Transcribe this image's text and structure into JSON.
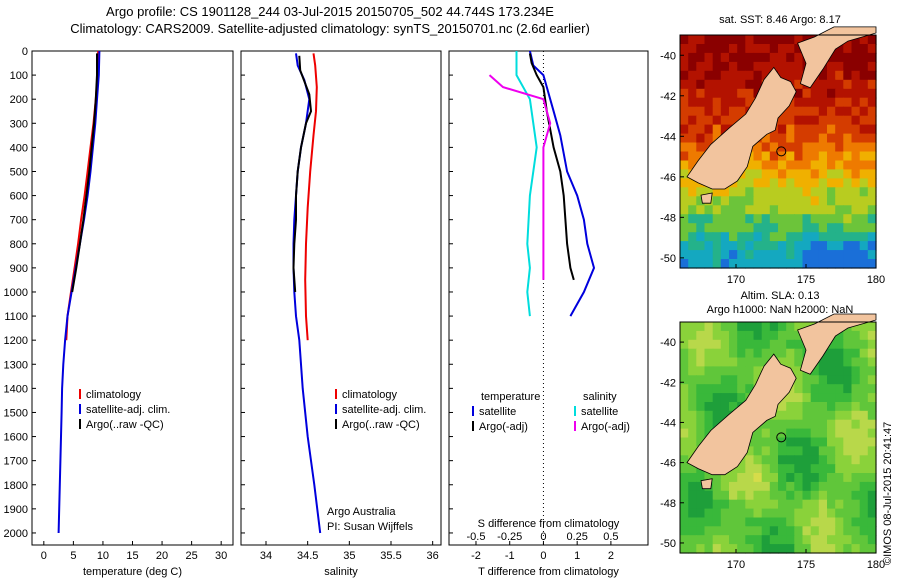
{
  "header": {
    "title_line1": "Argo profile: CS 1901128_244 03-Jul-2015 20150705_502 44.744S 173.234E",
    "title_line2": "Climatology: CARS2009. Satellite-adjusted climatology: synTS_20150701.nc (2.6d earlier)"
  },
  "colors": {
    "climatology": "#ee0000",
    "satellite": "#0000dd",
    "argo": "#000000",
    "satellite_s": "#00dddd",
    "argo_s": "#ee00ee",
    "land": "#f2c49e"
  },
  "chart_data": [
    {
      "type": "line",
      "xlabel": "temperature (deg C)",
      "xlim": [
        -2,
        32
      ],
      "xticks": [
        0,
        5,
        10,
        15,
        20,
        25,
        30
      ],
      "ylim": [
        2050,
        0
      ],
      "yticks": [
        0,
        100,
        200,
        300,
        400,
        500,
        600,
        700,
        800,
        900,
        1000,
        1100,
        1200,
        1300,
        1400,
        1500,
        1600,
        1700,
        1800,
        1900,
        2000
      ],
      "legend": [
        "climatology",
        "satellite-adj. clim.",
        "Argo(..raw -QC)"
      ],
      "series": [
        {
          "name": "climatology",
          "color": "#ee0000",
          "points": [
            [
              9.2,
              0
            ],
            [
              9.1,
              100
            ],
            [
              8.8,
              200
            ],
            [
              8.4,
              300
            ],
            [
              7.9,
              400
            ],
            [
              7.4,
              500
            ],
            [
              6.9,
              600
            ],
            [
              6.3,
              700
            ],
            [
              5.8,
              800
            ],
            [
              5.2,
              900
            ],
            [
              4.6,
              1000
            ],
            [
              4.0,
              1100
            ],
            [
              3.8,
              1200
            ]
          ]
        },
        {
          "name": "satellite-adj. clim.",
          "color": "#0000dd",
          "points": [
            [
              9.4,
              0
            ],
            [
              9.3,
              100
            ],
            [
              9.0,
              200
            ],
            [
              8.7,
              300
            ],
            [
              8.3,
              400
            ],
            [
              7.9,
              500
            ],
            [
              7.4,
              600
            ],
            [
              6.8,
              700
            ],
            [
              6.1,
              800
            ],
            [
              5.4,
              900
            ],
            [
              4.7,
              1000
            ],
            [
              4.0,
              1100
            ],
            [
              3.6,
              1200
            ],
            [
              3.3,
              1300
            ],
            [
              3.1,
              1400
            ],
            [
              3.0,
              1500
            ],
            [
              2.9,
              1600
            ],
            [
              2.8,
              1700
            ],
            [
              2.7,
              1800
            ],
            [
              2.6,
              1900
            ],
            [
              2.5,
              2000
            ]
          ]
        },
        {
          "name": "Argo(..raw -QC)",
          "color": "#000000",
          "points": [
            [
              9.0,
              10
            ],
            [
              9.0,
              100
            ],
            [
              8.8,
              200
            ],
            [
              8.5,
              300
            ],
            [
              8.1,
              400
            ],
            [
              7.7,
              500
            ],
            [
              7.2,
              600
            ],
            [
              6.7,
              700
            ],
            [
              6.1,
              800
            ],
            [
              5.5,
              900
            ],
            [
              4.8,
              1000
            ]
          ]
        }
      ]
    },
    {
      "type": "line",
      "xlabel": "salinity",
      "xlim": [
        33.7,
        36.1
      ],
      "xticks": [
        34,
        34.5,
        35,
        35.5,
        36
      ],
      "ylim": [
        2050,
        0
      ],
      "legend": [
        "climatology",
        "satellite-adj. clim.",
        "Argo(..raw -QC)"
      ],
      "annotation": [
        "Argo Australia",
        "PI: Susan Wijffels"
      ],
      "series": [
        {
          "name": "climatology",
          "color": "#ee0000",
          "points": [
            [
              34.57,
              10
            ],
            [
              34.59,
              60
            ],
            [
              34.61,
              150
            ],
            [
              34.6,
              250
            ],
            [
              34.57,
              350
            ],
            [
              34.53,
              500
            ],
            [
              34.5,
              650
            ],
            [
              34.48,
              800
            ],
            [
              34.47,
              950
            ],
            [
              34.48,
              1100
            ],
            [
              34.5,
              1200
            ]
          ]
        },
        {
          "name": "satellite-adj. clim.",
          "color": "#0000dd",
          "points": [
            [
              34.36,
              10
            ],
            [
              34.38,
              60
            ],
            [
              34.46,
              120
            ],
            [
              34.52,
              200
            ],
            [
              34.48,
              300
            ],
            [
              34.42,
              400
            ],
            [
              34.38,
              500
            ],
            [
              34.36,
              600
            ],
            [
              34.34,
              700
            ],
            [
              34.33,
              800
            ],
            [
              34.33,
              900
            ],
            [
              34.34,
              1000
            ],
            [
              34.36,
              1100
            ],
            [
              34.4,
              1200
            ],
            [
              34.44,
              1400
            ],
            [
              34.5,
              1600
            ],
            [
              34.58,
              1800
            ],
            [
              34.65,
              2000
            ]
          ]
        },
        {
          "name": "Argo(..raw -QC)",
          "color": "#000000",
          "points": [
            [
              34.4,
              20
            ],
            [
              34.41,
              80
            ],
            [
              34.52,
              180
            ],
            [
              34.54,
              250
            ],
            [
              34.48,
              300
            ],
            [
              34.42,
              400
            ],
            [
              34.38,
              500
            ],
            [
              34.36,
              600
            ],
            [
              34.36,
              700
            ],
            [
              34.34,
              800
            ],
            [
              34.33,
              900
            ],
            [
              34.35,
              1000
            ]
          ]
        }
      ]
    },
    {
      "type": "line",
      "xlabel": "T difference from climatology",
      "xlabel_top": "S difference from climatology",
      "xlim": [
        -2.8,
        3.1
      ],
      "xticks": [
        -2,
        -1,
        0,
        1,
        2
      ],
      "xticks_top": [
        -0.5,
        -0.25,
        0,
        0.25,
        0.5
      ],
      "ylim": [
        2050,
        0
      ],
      "legend_temperature": [
        "temperature",
        "satellite",
        "Argo(-adj)"
      ],
      "legend_salinity": [
        "salinity",
        "satellite",
        "Argo(-adj)"
      ],
      "series": [
        {
          "name": "T satellite",
          "color": "#0000dd",
          "points": [
            [
              -0.4,
              0
            ],
            [
              -0.3,
              60
            ],
            [
              0.0,
              100
            ],
            [
              0.1,
              150
            ],
            [
              0.3,
              250
            ],
            [
              0.5,
              350
            ],
            [
              0.7,
              500
            ],
            [
              1.0,
              600
            ],
            [
              1.2,
              700
            ],
            [
              1.3,
              800
            ],
            [
              1.5,
              900
            ],
            [
              1.2,
              1000
            ],
            [
              0.8,
              1100
            ]
          ]
        },
        {
          "name": "T Argo(-adj)",
          "color": "#000000",
          "points": [
            [
              -0.4,
              10
            ],
            [
              -0.35,
              50
            ],
            [
              -0.2,
              100
            ],
            [
              0.0,
              150
            ],
            [
              0.1,
              250
            ],
            [
              0.3,
              400
            ],
            [
              0.5,
              500
            ],
            [
              0.6,
              600
            ],
            [
              0.65,
              700
            ],
            [
              0.7,
              800
            ],
            [
              0.8,
              900
            ],
            [
              0.9,
              950
            ]
          ]
        },
        {
          "name": "S satellite",
          "color": "#00dddd",
          "points": [
            [
              -0.2,
              0
            ],
            [
              -0.2,
              100
            ],
            [
              -0.1,
              200
            ],
            [
              -0.05,
              400
            ],
            [
              -0.1,
              600
            ],
            [
              -0.12,
              800
            ],
            [
              -0.1,
              900
            ],
            [
              -0.12,
              1000
            ],
            [
              -0.1,
              1100
            ]
          ]
        },
        {
          "name": "S Argo(-adj)",
          "color": "#ee00ee",
          "points": [
            [
              -0.4,
              100
            ],
            [
              -0.3,
              150
            ],
            [
              0.0,
              200
            ],
            [
              0.05,
              300
            ],
            [
              0.0,
              400
            ],
            [
              0.0,
              600
            ],
            [
              0.0,
              800
            ],
            [
              0.0,
              900
            ],
            [
              0.0,
              950
            ]
          ]
        }
      ]
    },
    {
      "type": "heatmap",
      "title": "sat. SST: 8.46 Argo: 8.17",
      "xlim": [
        166,
        180
      ],
      "ylim": [
        -50.5,
        -39
      ],
      "xticks": [
        170,
        175,
        180
      ],
      "yticks": [
        -40,
        -42,
        -44,
        -46,
        -48,
        -50
      ],
      "palette": [
        "#8a0000",
        "#b31200",
        "#d43c00",
        "#ee7a00",
        "#f0b000",
        "#b8cc20",
        "#6cc43a",
        "#24b28a",
        "#14a8c0",
        "#1a6fd8"
      ]
    },
    {
      "type": "heatmap",
      "title_line1": "Altim. SLA: 0.13",
      "title_line2": "Argo h1000: NaN h2000: NaN",
      "xlim": [
        166,
        180
      ],
      "ylim": [
        -50.5,
        -39
      ],
      "xticks": [
        170,
        175,
        180
      ],
      "yticks": [
        -40,
        -42,
        -44,
        -46,
        -48,
        -50
      ],
      "palette": [
        "#1e9f3a",
        "#39b83a",
        "#60c63a",
        "#8ad23a",
        "#b8d84a",
        "#d6dc4a"
      ]
    }
  ],
  "footer": {
    "credit": "©IMOS 08-Jul-2015 20:41:47"
  }
}
